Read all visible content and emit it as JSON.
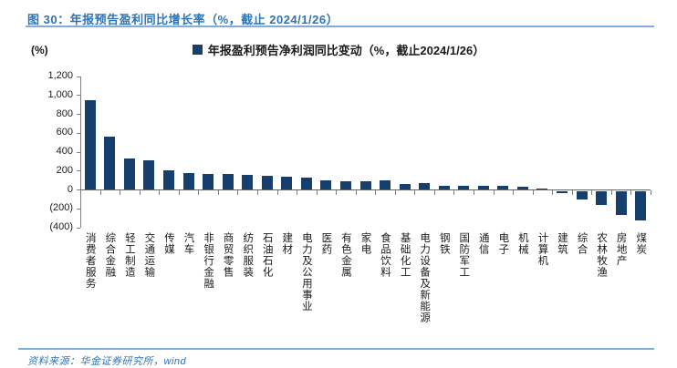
{
  "title": "图 30：年报预告盈利同比增长率（%，截止 2024/1/26）",
  "legend": {
    "label": "年报盈利预告净利润同比变动（%，截止2024/1/26）"
  },
  "y_unit_label": "(%)",
  "source": "资料来源：华金证券研究所，wind",
  "colors": {
    "bar": "#173F6E",
    "title_blue": "#2E74B5",
    "rule_blue": "#7FAEDC",
    "axis_gray": "#808080"
  },
  "chart_data": {
    "type": "bar",
    "title": "年报盈利预告净利润同比变动（%，截止2024/1/26）",
    "categories": [
      "消费者服务",
      "综合金融",
      "轻工制造",
      "交通运输",
      "传媒",
      "汽车",
      "非银行金融",
      "商贸零售",
      "纺织服装",
      "石油石化",
      "建材",
      "电力及公用事业",
      "医药",
      "有色金属",
      "家电",
      "食品饮料",
      "基础化工",
      "电力设备及新能源",
      "钢铁",
      "国防军工",
      "通信",
      "电子",
      "机械",
      "计算机",
      "建筑",
      "综合",
      "农林牧渔",
      "房地产",
      "煤炭"
    ],
    "values": [
      950,
      565,
      335,
      310,
      210,
      180,
      170,
      165,
      155,
      150,
      140,
      130,
      100,
      90,
      95,
      105,
      65,
      70,
      45,
      40,
      45,
      45,
      35,
      15,
      -20,
      -95,
      -150,
      -260,
      -310
    ],
    "xlabel": "",
    "ylabel": "(%)",
    "ylim": [
      -400,
      1200
    ],
    "ytick_step": 200,
    "ytick_labels": [
      "1,200",
      "1,000",
      "800",
      "600",
      "400",
      "200",
      "0",
      "(200)",
      "(400)"
    ],
    "grid": false,
    "legend_position": "top-center"
  }
}
